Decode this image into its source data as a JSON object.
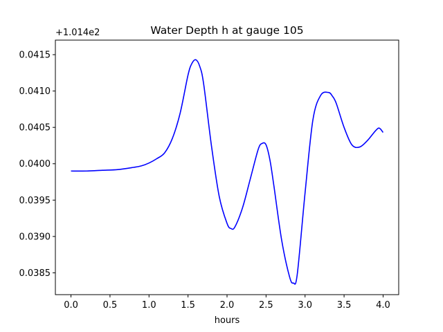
{
  "chart_data": {
    "type": "line",
    "title": "Water Depth h at gauge 105",
    "xlabel": "hours",
    "ylabel": "",
    "y_offset_text": "+1.014e2",
    "xlim": [
      -0.2,
      4.2
    ],
    "ylim": [
      0.0382,
      0.0417
    ],
    "x_ticks": [
      0.0,
      0.5,
      1.0,
      1.5,
      2.0,
      2.5,
      3.0,
      3.5,
      4.0
    ],
    "x_tick_labels": [
      "0.0",
      "0.5",
      "1.0",
      "1.5",
      "2.0",
      "2.5",
      "3.0",
      "3.5",
      "4.0"
    ],
    "y_ticks": [
      0.0385,
      0.039,
      0.0395,
      0.04,
      0.0405,
      0.041,
      0.0415
    ],
    "y_tick_labels": [
      "0.0385",
      "0.0390",
      "0.0395",
      "0.0400",
      "0.0405",
      "0.0410",
      "0.0415"
    ],
    "grid": false,
    "legend": "none",
    "series": [
      {
        "color": "#0000ff",
        "x": [
          0.0,
          0.2,
          0.4,
          0.6,
          0.8,
          0.9,
          1.0,
          1.1,
          1.2,
          1.3,
          1.4,
          1.5,
          1.55,
          1.6,
          1.65,
          1.7,
          1.8,
          1.9,
          2.0,
          2.05,
          2.1,
          2.2,
          2.3,
          2.4,
          2.45,
          2.5,
          2.55,
          2.6,
          2.7,
          2.8,
          2.85,
          2.9,
          3.0,
          3.1,
          3.2,
          3.3,
          3.35,
          3.4,
          3.5,
          3.6,
          3.7,
          3.8,
          3.9,
          3.95,
          4.0
        ],
        "y": [
          0.0399,
          0.0399,
          0.03991,
          0.03992,
          0.03995,
          0.03997,
          0.04001,
          0.04007,
          0.04015,
          0.04035,
          0.0407,
          0.04122,
          0.04138,
          0.04143,
          0.04134,
          0.0411,
          0.04025,
          0.03955,
          0.03918,
          0.03911,
          0.03913,
          0.0394,
          0.0398,
          0.0402,
          0.04028,
          0.04026,
          0.04005,
          0.0397,
          0.03895,
          0.03845,
          0.03836,
          0.03848,
          0.0396,
          0.0406,
          0.04094,
          0.04098,
          0.04093,
          0.04083,
          0.0405,
          0.04026,
          0.04023,
          0.04032,
          0.04045,
          0.04049,
          0.04043
        ]
      }
    ]
  }
}
